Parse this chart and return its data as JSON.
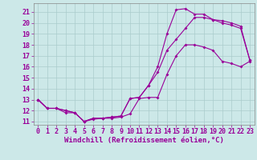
{
  "xlabel": "Windchill (Refroidissement éolien,°C)",
  "bg_color": "#cce8e8",
  "line_color": "#990099",
  "grid_color": "#aacccc",
  "xlim": [
    -0.5,
    23.5
  ],
  "ylim": [
    10.7,
    21.8
  ],
  "xticks": [
    0,
    1,
    2,
    3,
    4,
    5,
    6,
    7,
    8,
    9,
    10,
    11,
    12,
    13,
    14,
    15,
    16,
    17,
    18,
    19,
    20,
    21,
    22,
    23
  ],
  "yticks": [
    11,
    12,
    13,
    14,
    15,
    16,
    17,
    18,
    19,
    20,
    21
  ],
  "line1_x": [
    0,
    1,
    2,
    3,
    4,
    5,
    6,
    7,
    8,
    9,
    10,
    11,
    12,
    13,
    14,
    15,
    16,
    17,
    18,
    19,
    20,
    21,
    22,
    23
  ],
  "line1_y": [
    13.0,
    12.2,
    12.2,
    11.8,
    11.8,
    11.0,
    11.2,
    11.3,
    11.3,
    11.4,
    11.7,
    13.1,
    13.2,
    13.2,
    15.3,
    17.0,
    18.0,
    18.0,
    17.8,
    17.5,
    16.5,
    16.3,
    16.0,
    16.5
  ],
  "line2_x": [
    0,
    1,
    2,
    3,
    4,
    5,
    6,
    7,
    8,
    9,
    10,
    11,
    12,
    13,
    14,
    15,
    16,
    17,
    18,
    19,
    20,
    21,
    22,
    23
  ],
  "line2_y": [
    13.0,
    12.2,
    12.2,
    12.0,
    11.8,
    11.0,
    11.3,
    11.3,
    11.4,
    11.5,
    13.1,
    13.2,
    14.3,
    15.5,
    17.5,
    18.5,
    19.5,
    20.5,
    20.5,
    20.3,
    20.2,
    20.0,
    19.7,
    16.6
  ],
  "line3_x": [
    0,
    1,
    2,
    3,
    4,
    5,
    6,
    7,
    8,
    9,
    10,
    11,
    12,
    13,
    14,
    15,
    16,
    17,
    18,
    19,
    20,
    21,
    22,
    23
  ],
  "line3_y": [
    13.0,
    12.2,
    12.2,
    12.0,
    11.8,
    11.0,
    11.3,
    11.3,
    11.4,
    11.5,
    13.1,
    13.2,
    14.3,
    16.0,
    19.0,
    21.2,
    21.3,
    20.8,
    20.8,
    20.3,
    20.0,
    19.8,
    19.5,
    16.6
  ],
  "tick_fontsize": 6,
  "xlabel_fontsize": 6.5
}
